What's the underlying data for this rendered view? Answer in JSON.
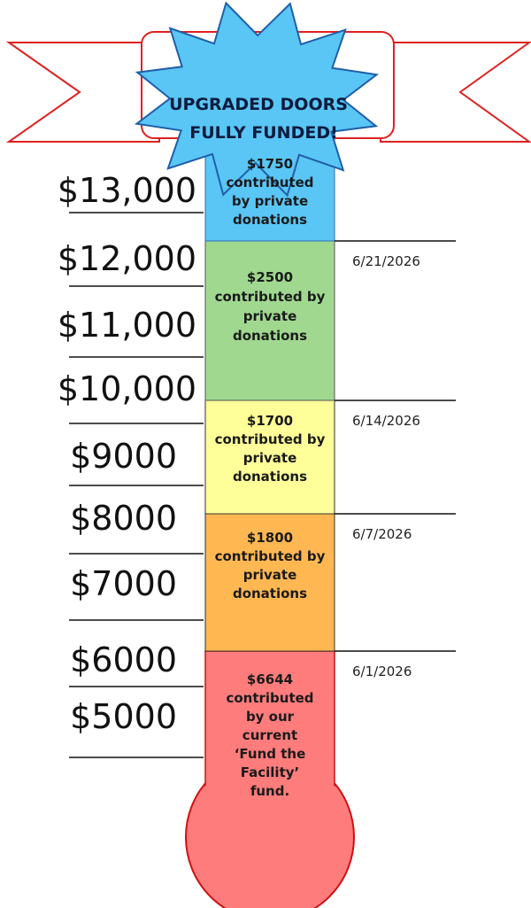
{
  "banner": {
    "lines": [
      "UPGRADED DOORS",
      "FULLY FUNDED!"
    ]
  },
  "scale": [
    "$13,000",
    "$12,000",
    "$11,000",
    "$10,000",
    "$9000",
    "$8000",
    "$7000",
    "$6000",
    "$5000"
  ],
  "segments": [
    {
      "lines": [
        "$1750",
        "contributed",
        "by private",
        "donations"
      ]
    },
    {
      "lines": [
        "$2500",
        "contributed by",
        "private",
        "donations"
      ],
      "date": "6/21/2026"
    },
    {
      "lines": [
        "$1700",
        "contributed by",
        "private",
        "donations"
      ],
      "date": "6/14/2026"
    },
    {
      "lines": [
        "$1800",
        "contributed by",
        "private",
        "donations"
      ],
      "date": "6/7/2026"
    },
    {
      "lines": [
        "$6644",
        "contributed",
        "by our",
        "current",
        "‘Fund the",
        "Facility’",
        "fund."
      ],
      "date": "6/1/2026"
    }
  ]
}
